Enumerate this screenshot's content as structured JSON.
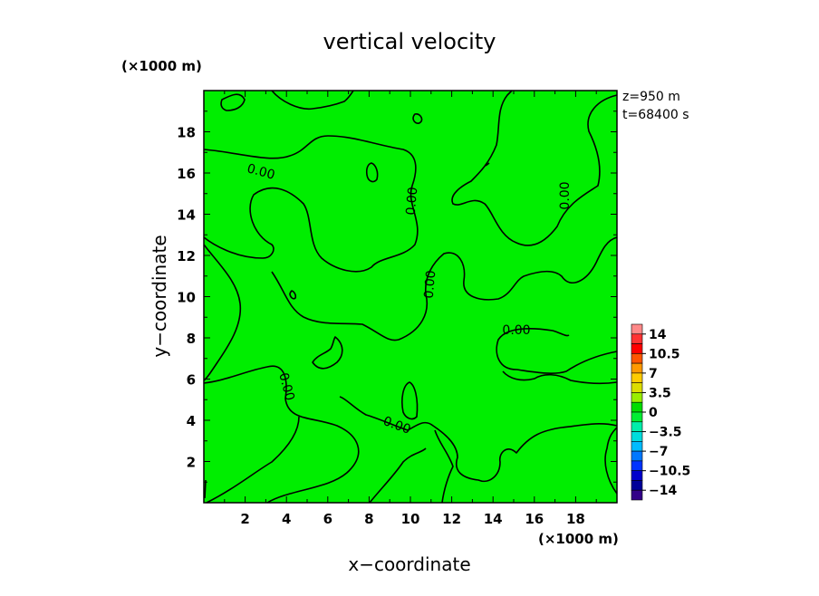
{
  "chart_data": {
    "type": "heatmap",
    "title": "vertical velocity",
    "xlabel": "x−coordinate",
    "ylabel": "y−coordinate",
    "x_unit": "(×1000 m)",
    "y_unit": "(×1000 m)",
    "xlim": [
      0,
      20
    ],
    "ylim": [
      0,
      20
    ],
    "x_ticks": [
      "2",
      "4",
      "6",
      "8",
      "10",
      "12",
      "14",
      "16",
      "18"
    ],
    "y_ticks": [
      "2",
      "4",
      "6",
      "8",
      "10",
      "12",
      "14",
      "16",
      "18"
    ],
    "info": [
      "z=950 m",
      "t=68400 s"
    ],
    "field_color": "#00ee00",
    "contour_level": "0.00",
    "colorbar": {
      "labels": [
        "14",
        "10.5",
        "7",
        "3.5",
        "0",
        "−3.5",
        "−7",
        "−10.5",
        "−14"
      ],
      "colors": [
        "#ff8888",
        "#ff3333",
        "#ff0000",
        "#ff5500",
        "#ff9900",
        "#ffcc00",
        "#dddd00",
        "#99ee00",
        "#00dd00",
        "#00ee33",
        "#00eeaa",
        "#00dddd",
        "#00bbff",
        "#0077ff",
        "#0033ff",
        "#0000cc",
        "#000099",
        "#330088"
      ]
    }
  }
}
